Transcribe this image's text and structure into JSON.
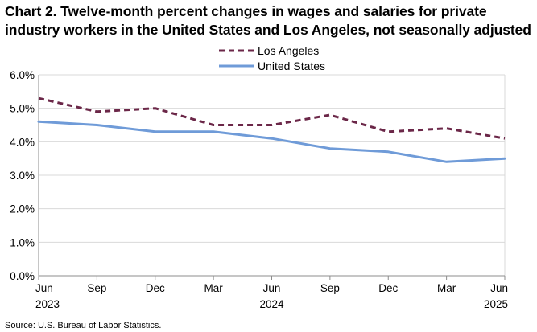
{
  "chart_data": {
    "type": "line",
    "title_lines": [
      "Chart 2. Twelve-month percent changes in wages and salaries for private",
      "industry workers in the United States and Los Angeles, not seasonally adjusted"
    ],
    "categories": [
      "Jun\n2023",
      "Sep",
      "Dec",
      "Mar",
      "Jun\n2024",
      "Sep",
      "Dec",
      "Mar",
      "Jun\n2025"
    ],
    "series": [
      {
        "name": "Los Angeles",
        "color": "#6B2748",
        "style": "dashed",
        "values": [
          5.3,
          4.9,
          5.0,
          4.5,
          4.5,
          4.8,
          4.3,
          4.4,
          4.1
        ]
      },
      {
        "name": "United States",
        "color": "#6F9BD8",
        "style": "solid",
        "values": [
          4.6,
          4.5,
          4.3,
          4.3,
          4.1,
          3.8,
          3.7,
          3.4,
          3.5
        ]
      }
    ],
    "ylim": [
      0,
      6
    ],
    "yticks": [
      0,
      1,
      2,
      3,
      4,
      5,
      6
    ],
    "ytick_labels": [
      "0.0%",
      "1.0%",
      "2.0%",
      "3.0%",
      "4.0%",
      "5.0%",
      "6.0%"
    ],
    "grid": true,
    "legend_position": "top-center",
    "xlabel": "",
    "ylabel": ""
  },
  "source": "Source: U.S. Bureau of Labor Statistics."
}
